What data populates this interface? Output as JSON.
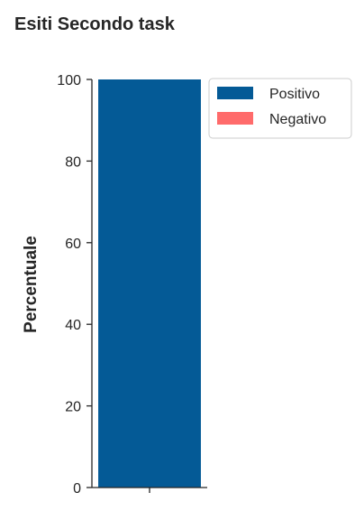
{
  "chart_data": {
    "type": "bar",
    "stacked": true,
    "title": "Esiti Secondo task",
    "xlabel": "",
    "ylabel": "Percentuale",
    "ylim": [
      0,
      100
    ],
    "yticks": [
      0,
      20,
      40,
      60,
      80,
      100
    ],
    "categories": [
      ""
    ],
    "series": [
      {
        "name": "Positivo",
        "values": [
          100
        ],
        "color": "#045a96"
      },
      {
        "name": "Negativo",
        "values": [
          0
        ],
        "color": "#ff6b6b"
      }
    ],
    "grid": false,
    "legend_position": "outside-top-right"
  }
}
